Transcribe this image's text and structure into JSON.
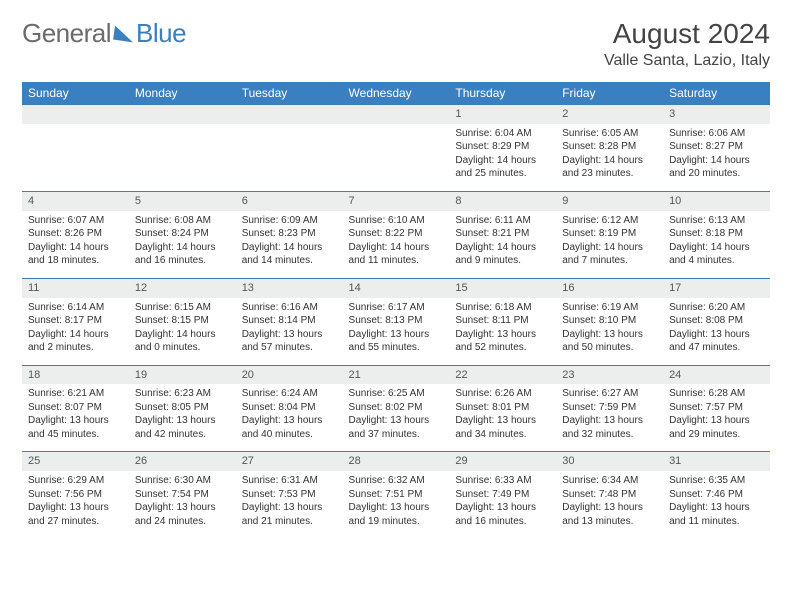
{
  "brand": {
    "general": "General",
    "blue": "Blue"
  },
  "header": {
    "month": "August 2024",
    "location": "Valle Santa, Lazio, Italy"
  },
  "styling": {
    "accent_color": "#3a7fbf",
    "header_text_color": "#ffffff",
    "day_number_bg": "#eceded",
    "text_color": "#333333",
    "thead_fontsize": 12,
    "body_fontsize": 10
  },
  "dayNames": [
    "Sunday",
    "Monday",
    "Tuesday",
    "Wednesday",
    "Thursday",
    "Friday",
    "Saturday"
  ],
  "weeks": [
    [
      {
        "empty": true
      },
      {
        "empty": true
      },
      {
        "empty": true
      },
      {
        "empty": true
      },
      {
        "n": "1",
        "sr": "Sunrise: 6:04 AM",
        "ss": "Sunset: 8:29 PM",
        "d1": "Daylight: 14 hours",
        "d2": "and 25 minutes."
      },
      {
        "n": "2",
        "sr": "Sunrise: 6:05 AM",
        "ss": "Sunset: 8:28 PM",
        "d1": "Daylight: 14 hours",
        "d2": "and 23 minutes."
      },
      {
        "n": "3",
        "sr": "Sunrise: 6:06 AM",
        "ss": "Sunset: 8:27 PM",
        "d1": "Daylight: 14 hours",
        "d2": "and 20 minutes."
      }
    ],
    [
      {
        "n": "4",
        "sr": "Sunrise: 6:07 AM",
        "ss": "Sunset: 8:26 PM",
        "d1": "Daylight: 14 hours",
        "d2": "and 18 minutes."
      },
      {
        "n": "5",
        "sr": "Sunrise: 6:08 AM",
        "ss": "Sunset: 8:24 PM",
        "d1": "Daylight: 14 hours",
        "d2": "and 16 minutes."
      },
      {
        "n": "6",
        "sr": "Sunrise: 6:09 AM",
        "ss": "Sunset: 8:23 PM",
        "d1": "Daylight: 14 hours",
        "d2": "and 14 minutes."
      },
      {
        "n": "7",
        "sr": "Sunrise: 6:10 AM",
        "ss": "Sunset: 8:22 PM",
        "d1": "Daylight: 14 hours",
        "d2": "and 11 minutes."
      },
      {
        "n": "8",
        "sr": "Sunrise: 6:11 AM",
        "ss": "Sunset: 8:21 PM",
        "d1": "Daylight: 14 hours",
        "d2": "and 9 minutes."
      },
      {
        "n": "9",
        "sr": "Sunrise: 6:12 AM",
        "ss": "Sunset: 8:19 PM",
        "d1": "Daylight: 14 hours",
        "d2": "and 7 minutes."
      },
      {
        "n": "10",
        "sr": "Sunrise: 6:13 AM",
        "ss": "Sunset: 8:18 PM",
        "d1": "Daylight: 14 hours",
        "d2": "and 4 minutes."
      }
    ],
    [
      {
        "n": "11",
        "sr": "Sunrise: 6:14 AM",
        "ss": "Sunset: 8:17 PM",
        "d1": "Daylight: 14 hours",
        "d2": "and 2 minutes."
      },
      {
        "n": "12",
        "sr": "Sunrise: 6:15 AM",
        "ss": "Sunset: 8:15 PM",
        "d1": "Daylight: 14 hours",
        "d2": "and 0 minutes."
      },
      {
        "n": "13",
        "sr": "Sunrise: 6:16 AM",
        "ss": "Sunset: 8:14 PM",
        "d1": "Daylight: 13 hours",
        "d2": "and 57 minutes."
      },
      {
        "n": "14",
        "sr": "Sunrise: 6:17 AM",
        "ss": "Sunset: 8:13 PM",
        "d1": "Daylight: 13 hours",
        "d2": "and 55 minutes."
      },
      {
        "n": "15",
        "sr": "Sunrise: 6:18 AM",
        "ss": "Sunset: 8:11 PM",
        "d1": "Daylight: 13 hours",
        "d2": "and 52 minutes."
      },
      {
        "n": "16",
        "sr": "Sunrise: 6:19 AM",
        "ss": "Sunset: 8:10 PM",
        "d1": "Daylight: 13 hours",
        "d2": "and 50 minutes."
      },
      {
        "n": "17",
        "sr": "Sunrise: 6:20 AM",
        "ss": "Sunset: 8:08 PM",
        "d1": "Daylight: 13 hours",
        "d2": "and 47 minutes."
      }
    ],
    [
      {
        "n": "18",
        "sr": "Sunrise: 6:21 AM",
        "ss": "Sunset: 8:07 PM",
        "d1": "Daylight: 13 hours",
        "d2": "and 45 minutes."
      },
      {
        "n": "19",
        "sr": "Sunrise: 6:23 AM",
        "ss": "Sunset: 8:05 PM",
        "d1": "Daylight: 13 hours",
        "d2": "and 42 minutes."
      },
      {
        "n": "20",
        "sr": "Sunrise: 6:24 AM",
        "ss": "Sunset: 8:04 PM",
        "d1": "Daylight: 13 hours",
        "d2": "and 40 minutes."
      },
      {
        "n": "21",
        "sr": "Sunrise: 6:25 AM",
        "ss": "Sunset: 8:02 PM",
        "d1": "Daylight: 13 hours",
        "d2": "and 37 minutes."
      },
      {
        "n": "22",
        "sr": "Sunrise: 6:26 AM",
        "ss": "Sunset: 8:01 PM",
        "d1": "Daylight: 13 hours",
        "d2": "and 34 minutes."
      },
      {
        "n": "23",
        "sr": "Sunrise: 6:27 AM",
        "ss": "Sunset: 7:59 PM",
        "d1": "Daylight: 13 hours",
        "d2": "and 32 minutes."
      },
      {
        "n": "24",
        "sr": "Sunrise: 6:28 AM",
        "ss": "Sunset: 7:57 PM",
        "d1": "Daylight: 13 hours",
        "d2": "and 29 minutes."
      }
    ],
    [
      {
        "n": "25",
        "sr": "Sunrise: 6:29 AM",
        "ss": "Sunset: 7:56 PM",
        "d1": "Daylight: 13 hours",
        "d2": "and 27 minutes."
      },
      {
        "n": "26",
        "sr": "Sunrise: 6:30 AM",
        "ss": "Sunset: 7:54 PM",
        "d1": "Daylight: 13 hours",
        "d2": "and 24 minutes."
      },
      {
        "n": "27",
        "sr": "Sunrise: 6:31 AM",
        "ss": "Sunset: 7:53 PM",
        "d1": "Daylight: 13 hours",
        "d2": "and 21 minutes."
      },
      {
        "n": "28",
        "sr": "Sunrise: 6:32 AM",
        "ss": "Sunset: 7:51 PM",
        "d1": "Daylight: 13 hours",
        "d2": "and 19 minutes."
      },
      {
        "n": "29",
        "sr": "Sunrise: 6:33 AM",
        "ss": "Sunset: 7:49 PM",
        "d1": "Daylight: 13 hours",
        "d2": "and 16 minutes."
      },
      {
        "n": "30",
        "sr": "Sunrise: 6:34 AM",
        "ss": "Sunset: 7:48 PM",
        "d1": "Daylight: 13 hours",
        "d2": "and 13 minutes."
      },
      {
        "n": "31",
        "sr": "Sunrise: 6:35 AM",
        "ss": "Sunset: 7:46 PM",
        "d1": "Daylight: 13 hours",
        "d2": "and 11 minutes."
      }
    ]
  ]
}
